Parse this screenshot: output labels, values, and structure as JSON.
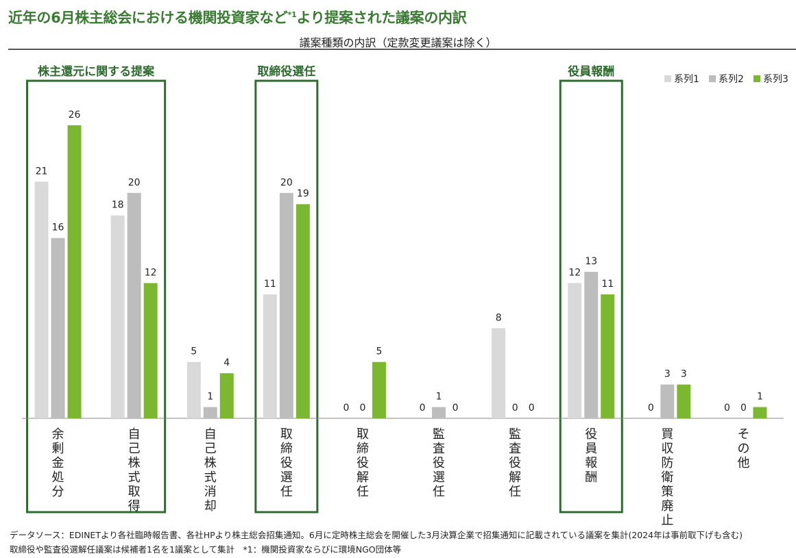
{
  "title": "近年の6月株主総会における機関投資家など",
  "title_sup": "*1",
  "title_rest": "より提案された議案の内訳",
  "subtitle": "議案種類の内訳（定款変更議案は除く）",
  "footnotes": [
    "データソース：EDINETより各社臨時報告書、各社HPより株主総会招集通知。6月に定時株主総会を開催した3月決算企業で招集通知に記載されている議案を集計(2024年は事前取下げも含む)",
    "取締役や監査役選解任議案は候補者1名を1議案として集計　*1：機関投資家ならびに環境NGO団体等"
  ],
  "colors": {
    "series1": "#d9d9d9",
    "series2": "#bdbdbd",
    "series3": "#7cb82f",
    "accent": "#2e6b2e",
    "axis": "#888888"
  },
  "chart_data": {
    "type": "bar",
    "categories": [
      "余剰金処分",
      "自己株式取得",
      "自己株式消却",
      "取締役選任",
      "取締役解任",
      "監査役選任",
      "監査役解任",
      "役員報酬",
      "買収防衛策廃止",
      "その他"
    ],
    "series": [
      {
        "name": "系列1",
        "values": [
          21,
          18,
          5,
          11,
          0,
          0,
          8,
          12,
          0,
          0
        ]
      },
      {
        "name": "系列2",
        "values": [
          16,
          20,
          1,
          20,
          0,
          1,
          0,
          13,
          3,
          0
        ]
      },
      {
        "name": "系列3",
        "values": [
          26,
          12,
          4,
          19,
          5,
          0,
          0,
          11,
          3,
          1
        ]
      }
    ],
    "ylim": [
      0,
      26
    ],
    "legend_position": "top-right",
    "group_boxes": [
      {
        "label": "株主還元に関する提案",
        "categories": [
          0,
          1
        ]
      },
      {
        "label": "取締役選任",
        "categories": [
          3
        ]
      },
      {
        "label": "役員報酬",
        "categories": [
          7
        ]
      }
    ]
  }
}
